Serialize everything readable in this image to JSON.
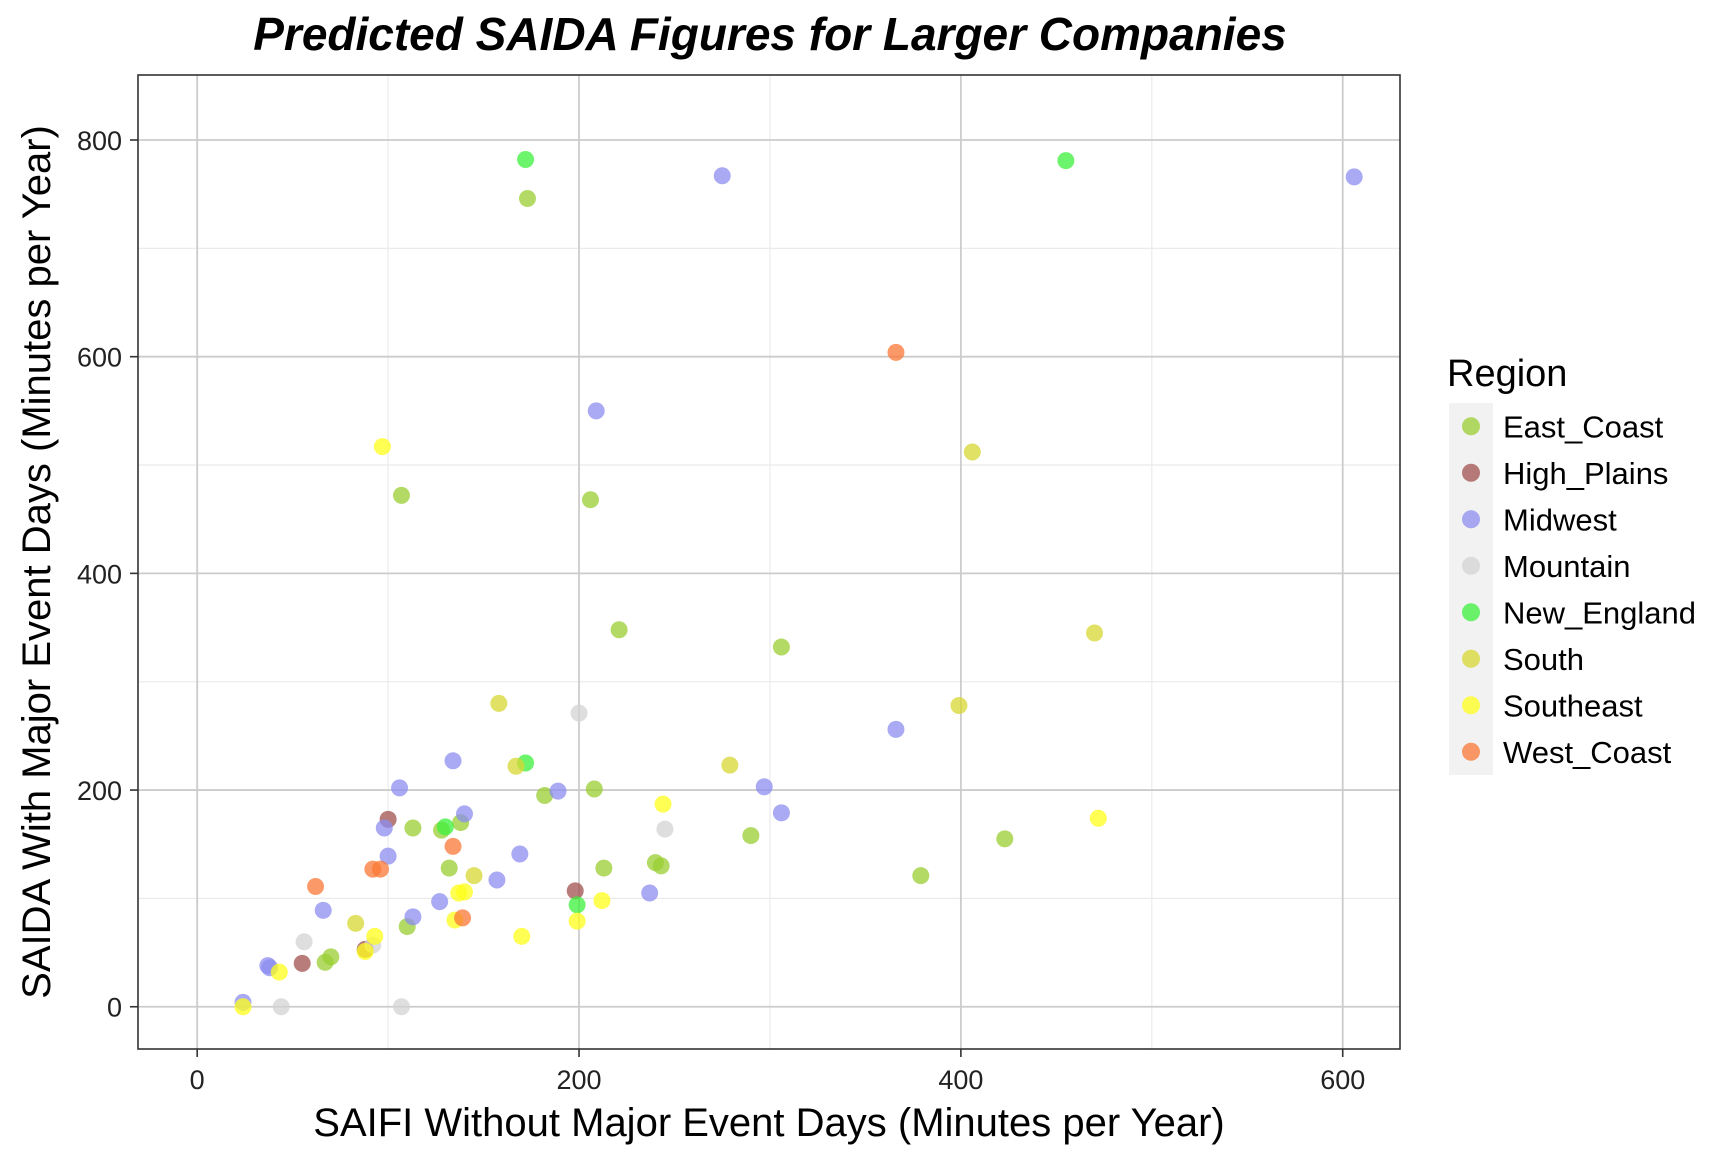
{
  "chart_data": {
    "type": "scatter",
    "title": "Predicted SAIDA Figures for Larger Companies",
    "xlabel": "SAIFI Without Major Event Days (Minutes per Year)",
    "ylabel": "SAIDA With Major Event Days (Minutes per Year)",
    "xlim": [
      -31,
      630
    ],
    "ylim": [
      -39,
      860
    ],
    "xticks": [
      0,
      200,
      400,
      600
    ],
    "yticks": [
      0,
      200,
      400,
      600,
      800
    ],
    "grid": true,
    "legend": {
      "title": "Region",
      "position": "right"
    },
    "series": [
      {
        "name": "East_Coast",
        "color": "#9acd32",
        "points": [
          [
            173,
            746
          ],
          [
            107,
            472
          ],
          [
            206,
            468
          ],
          [
            221,
            348
          ],
          [
            306,
            332
          ],
          [
            182,
            195
          ],
          [
            208,
            201
          ],
          [
            113,
            165
          ],
          [
            128,
            163
          ],
          [
            138,
            170
          ],
          [
            132,
            128
          ],
          [
            213,
            128
          ],
          [
            240,
            133
          ],
          [
            243,
            130
          ],
          [
            290,
            158
          ],
          [
            379,
            121
          ],
          [
            423,
            155
          ],
          [
            110,
            74
          ],
          [
            67,
            41
          ],
          [
            70,
            46
          ]
        ]
      },
      {
        "name": "High_Plains",
        "color": "#a0524d",
        "points": [
          [
            100,
            173
          ],
          [
            198,
            107
          ],
          [
            55,
            40
          ],
          [
            88,
            53
          ]
        ]
      },
      {
        "name": "Midwest",
        "color": "#8c8cf0",
        "points": [
          [
            275,
            767
          ],
          [
            606,
            766
          ],
          [
            209,
            550
          ],
          [
            134,
            227
          ],
          [
            106,
            202
          ],
          [
            366,
            256
          ],
          [
            140,
            178
          ],
          [
            98,
            165
          ],
          [
            169,
            141
          ],
          [
            100,
            139
          ],
          [
            157,
            117
          ],
          [
            189,
            199
          ],
          [
            297,
            203
          ],
          [
            306,
            179
          ],
          [
            237,
            105
          ],
          [
            127,
            97
          ],
          [
            113,
            83
          ],
          [
            66,
            89
          ],
          [
            37,
            38
          ],
          [
            38,
            36
          ],
          [
            24,
            4
          ]
        ]
      },
      {
        "name": "Mountain",
        "color": "#d3d3d3",
        "points": [
          [
            200,
            271
          ],
          [
            245,
            164
          ],
          [
            56,
            60
          ],
          [
            92,
            57
          ],
          [
            107,
            0
          ],
          [
            44,
            0
          ]
        ]
      },
      {
        "name": "New_England",
        "color": "#3cf03c",
        "points": [
          [
            172,
            782
          ],
          [
            455,
            781
          ],
          [
            172,
            225
          ],
          [
            130,
            166
          ],
          [
            199,
            94
          ]
        ]
      },
      {
        "name": "South",
        "color": "#d7d732",
        "points": [
          [
            158,
            280
          ],
          [
            406,
            512
          ],
          [
            470,
            345
          ],
          [
            399,
            278
          ],
          [
            279,
            223
          ],
          [
            167,
            222
          ],
          [
            145,
            121
          ],
          [
            83,
            77
          ]
        ]
      },
      {
        "name": "Southeast",
        "color": "#ffff1a",
        "points": [
          [
            97,
            517
          ],
          [
            472,
            174
          ],
          [
            244,
            187
          ],
          [
            137,
            105
          ],
          [
            140,
            106
          ],
          [
            135,
            80
          ],
          [
            212,
            98
          ],
          [
            199,
            79
          ],
          [
            170,
            65
          ],
          [
            93,
            65
          ],
          [
            43,
            32
          ],
          [
            24,
            0
          ],
          [
            88,
            51
          ]
        ]
      },
      {
        "name": "West_Coast",
        "color": "#fa7836",
        "points": [
          [
            366,
            604
          ],
          [
            62,
            111
          ],
          [
            92,
            127
          ],
          [
            96,
            127
          ],
          [
            134,
            148
          ],
          [
            139,
            82
          ]
        ]
      }
    ]
  }
}
